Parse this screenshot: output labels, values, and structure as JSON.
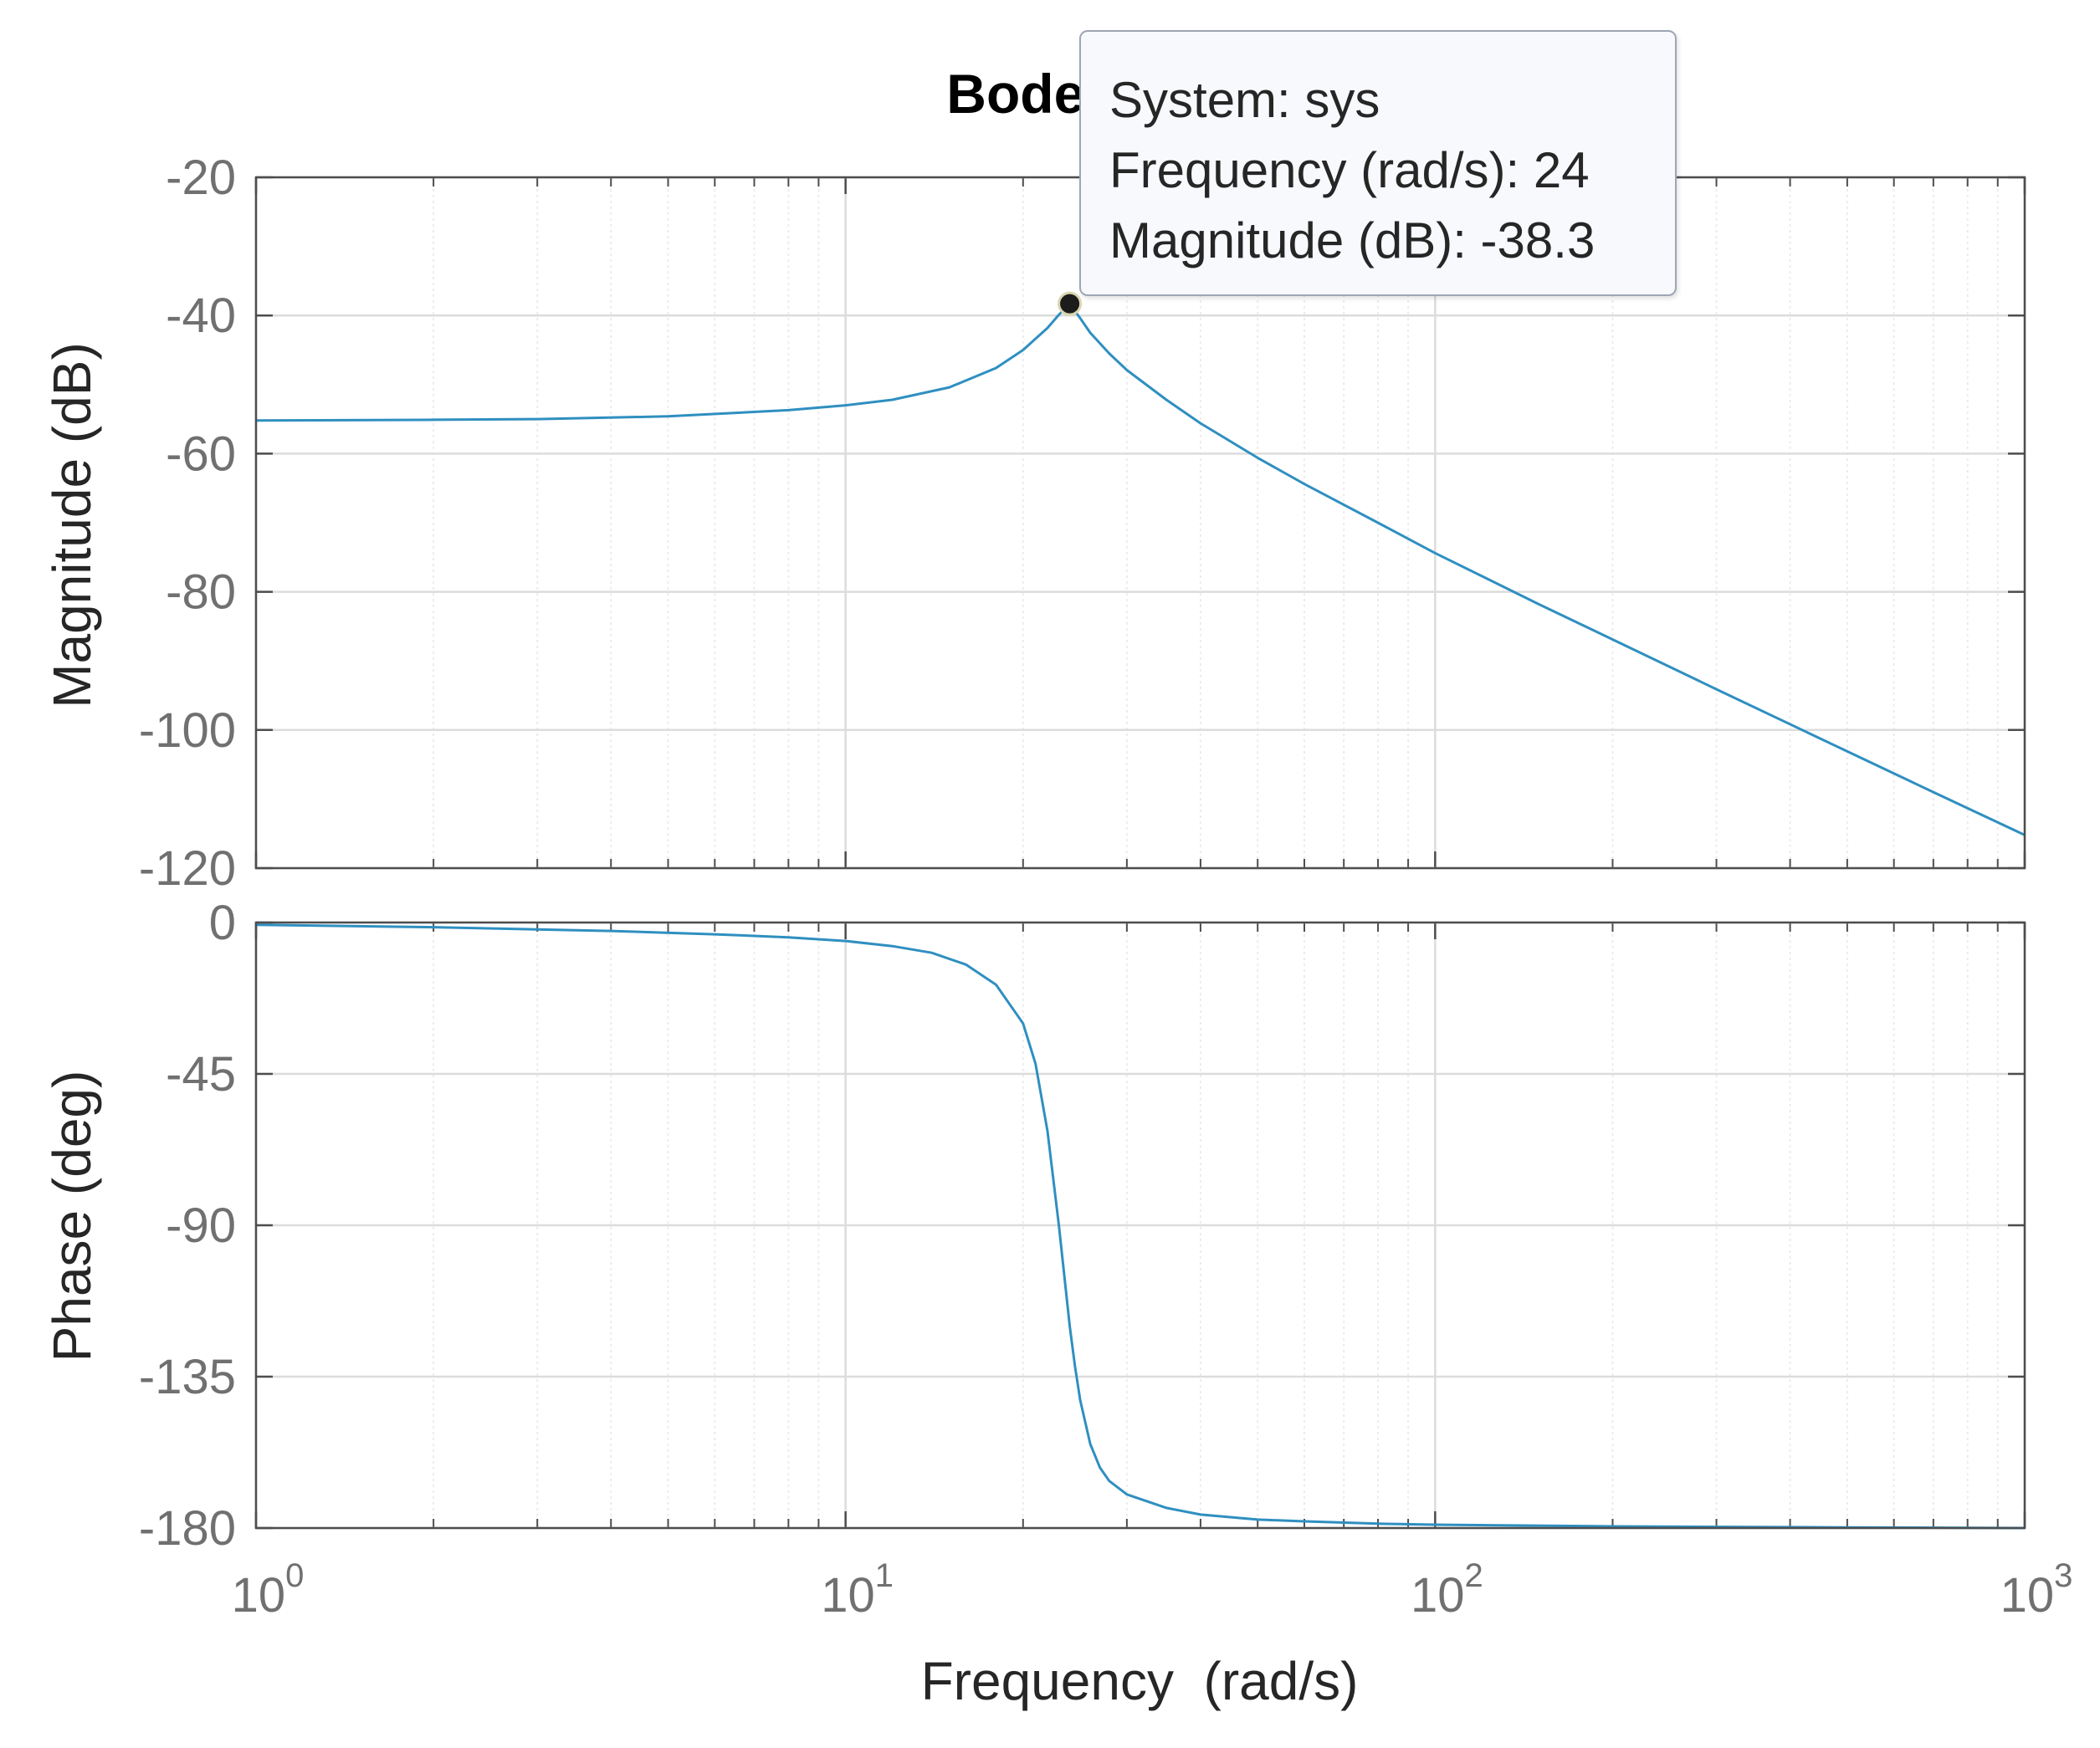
{
  "chart_data": [
    {
      "type": "line",
      "title": "Bode Diagram",
      "panel": "magnitude",
      "xlabel": "Frequency  (rad/s)",
      "ylabel": "Magnitude (dB)",
      "xscale": "log",
      "xlim": [
        1,
        1000
      ],
      "ylim": [
        -120,
        -20
      ],
      "yticks": [
        -20,
        -40,
        -60,
        -80,
        -100,
        -120
      ],
      "grid": true,
      "series": [
        {
          "name": "sys",
          "color": "#2f8fc0",
          "x": [
            1,
            2,
            3,
            5,
            8,
            10,
            12,
            15,
            18,
            20,
            22,
            23,
            24,
            25,
            26,
            28,
            30,
            35,
            40,
            50,
            60,
            80,
            100,
            150,
            200,
            300,
            500,
            700,
            1000
          ],
          "y": [
            -55.2,
            -55.1,
            -55.0,
            -54.6,
            -53.7,
            -53.0,
            -52.2,
            -50.4,
            -47.6,
            -45.0,
            -41.8,
            -39.9,
            -38.3,
            -40.4,
            -42.5,
            -45.5,
            -47.9,
            -52.2,
            -55.6,
            -60.6,
            -64.4,
            -70.0,
            -74.4,
            -81.8,
            -86.9,
            -94.1,
            -103.1,
            -109.0,
            -115.2
          ]
        }
      ],
      "annotations": [
        {
          "type": "datatip",
          "x": 24,
          "y": -38.3,
          "line1": "System: sys",
          "line2": "Frequency (rad/s): 24",
          "line3": "Magnitude (dB): -38.3"
        }
      ]
    },
    {
      "type": "line",
      "panel": "phase",
      "xlabel": "Frequency  (rad/s)",
      "ylabel": "Phase (deg)",
      "xscale": "log",
      "xlim": [
        1,
        1000
      ],
      "ylim": [
        -180,
        0
      ],
      "yticks": [
        0,
        -45,
        -90,
        -135,
        -180
      ],
      "xticks": [
        {
          "base": "10",
          "exp": "0"
        },
        {
          "base": "10",
          "exp": "1"
        },
        {
          "base": "10",
          "exp": "2"
        },
        {
          "base": "10",
          "exp": "3"
        }
      ],
      "grid": true,
      "series": [
        {
          "name": "sys",
          "color": "#2f8fc0",
          "x": [
            1,
            2,
            4,
            6,
            8,
            10,
            12,
            14,
            16,
            18,
            20,
            21,
            22,
            23,
            23.5,
            24,
            24.5,
            25,
            26,
            27,
            28,
            30,
            35,
            40,
            50,
            60,
            80,
            100,
            200,
            500,
            1000
          ],
          "y": [
            -0.7,
            -1.4,
            -2.5,
            -3.5,
            -4.4,
            -5.5,
            -7.0,
            -9.0,
            -12.5,
            -18.5,
            -30,
            -42,
            -62,
            -90,
            -105,
            -120,
            -132,
            -142,
            -155,
            -162,
            -166,
            -170,
            -174,
            -176,
            -177.5,
            -178,
            -178.7,
            -179,
            -179.5,
            -179.8,
            -180
          ]
        }
      ]
    }
  ]
}
